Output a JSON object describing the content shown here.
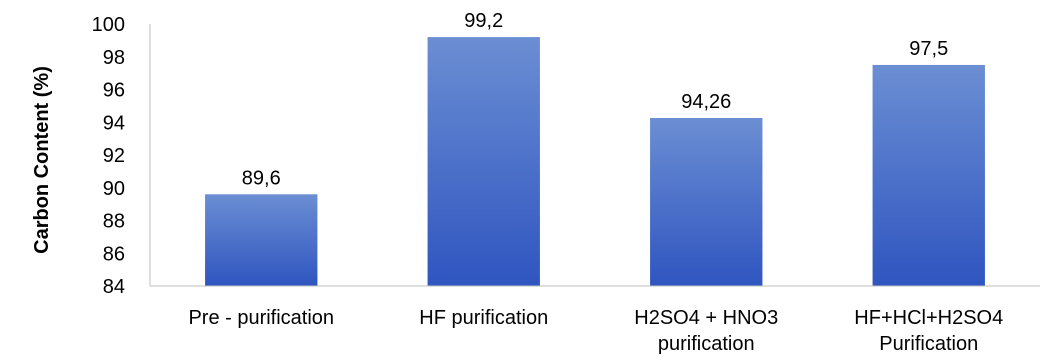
{
  "chart_data": {
    "type": "bar",
    "title": "",
    "xlabel": "",
    "ylabel": "Carbon Content (%)",
    "ylim": [
      84,
      100
    ],
    "yticks": [
      84,
      86,
      88,
      90,
      92,
      94,
      96,
      98,
      100
    ],
    "grid": false,
    "legend": "none",
    "categories": [
      [
        "Pre - purification"
      ],
      [
        "HF purification"
      ],
      [
        "H2SO4 + HNO3",
        "purification"
      ],
      [
        "HF+HCl+H2SO4",
        "Purification"
      ]
    ],
    "values": [
      89.6,
      99.2,
      94.26,
      97.5
    ],
    "data_labels": [
      "89,6",
      "99,2",
      "94,26",
      "97,5"
    ],
    "colors": {
      "bar_top": "#6b8ed3",
      "bar_bottom": "#2f55c0",
      "axis": "#bfbfbf"
    }
  }
}
